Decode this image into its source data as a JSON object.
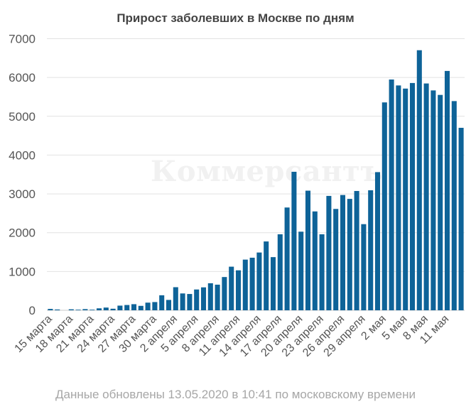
{
  "chart_data": {
    "type": "bar",
    "title": "Прирост заболевших в Москве по дням",
    "xlabel": "",
    "ylabel": "",
    "ylim": [
      0,
      7000
    ],
    "yticks": [
      0,
      1000,
      2000,
      3000,
      4000,
      5000,
      6000,
      7000
    ],
    "grid": true,
    "bar_color": "#0e6398",
    "categories": [
      "15 марта",
      "16 марта",
      "17 марта",
      "18 марта",
      "19 марта",
      "20 марта",
      "21 марта",
      "22 марта",
      "23 марта",
      "24 марта",
      "25 марта",
      "26 марта",
      "27 марта",
      "28 марта",
      "29 марта",
      "30 марта",
      "31 марта",
      "1 апреля",
      "2 апреля",
      "3 апреля",
      "4 апреля",
      "5 апреля",
      "6 апреля",
      "7 апреля",
      "8 апреля",
      "9 апреля",
      "10 апреля",
      "11 апреля",
      "12 апреля",
      "13 апреля",
      "14 апреля",
      "15 апреля",
      "16 апреля",
      "17 апреля",
      "18 апреля",
      "19 апреля",
      "20 апреля",
      "21 апреля",
      "22 апреля",
      "23 апреля",
      "24 апреля",
      "25 апреля",
      "26 апреля",
      "27 апреля",
      "28 апреля",
      "29 апреля",
      "30 апреля",
      "1 мая",
      "2 мая",
      "3 мая",
      "4 мая",
      "5 мая",
      "6 мая",
      "7 мая",
      "8 мая",
      "9 мая",
      "10 мая",
      "11 мая",
      "12 мая",
      "13 мая"
    ],
    "x_tick_labels": [
      "15 марта",
      "18 марта",
      "21 марта",
      "24 марта",
      "27 марта",
      "30 марта",
      "2 апреля",
      "5 апреля",
      "8 апреля",
      "11 апреля",
      "14 апреля",
      "17 апреля",
      "20 апреля",
      "23 апреля",
      "26 апреля",
      "29 апреля",
      "2 мая",
      "5 мая",
      "8 мая",
      "11 мая"
    ],
    "values": [
      35,
      20,
      0,
      25,
      15,
      30,
      15,
      50,
      70,
      40,
      120,
      136,
      157,
      114,
      197,
      212,
      387,
      267,
      595,
      434,
      420,
      536,
      591,
      697,
      660,
      857,
      1124,
      1030,
      1306,
      1355,
      1489,
      1774,
      1370,
      1959,
      2649,
      3570,
      2026,
      3083,
      2548,
      1959,
      2948,
      2612,
      2971,
      2871,
      3075,
      2220,
      3093,
      3561,
      5358,
      5948,
      5795,
      5714,
      5858,
      6703,
      5846,
      5667,
      5551,
      6169,
      5392,
      4703
    ]
  },
  "watermark": "Коммерсантъ",
  "footer": "Данные обновлены 13.05.2020 в 10:41 по московскому времени"
}
